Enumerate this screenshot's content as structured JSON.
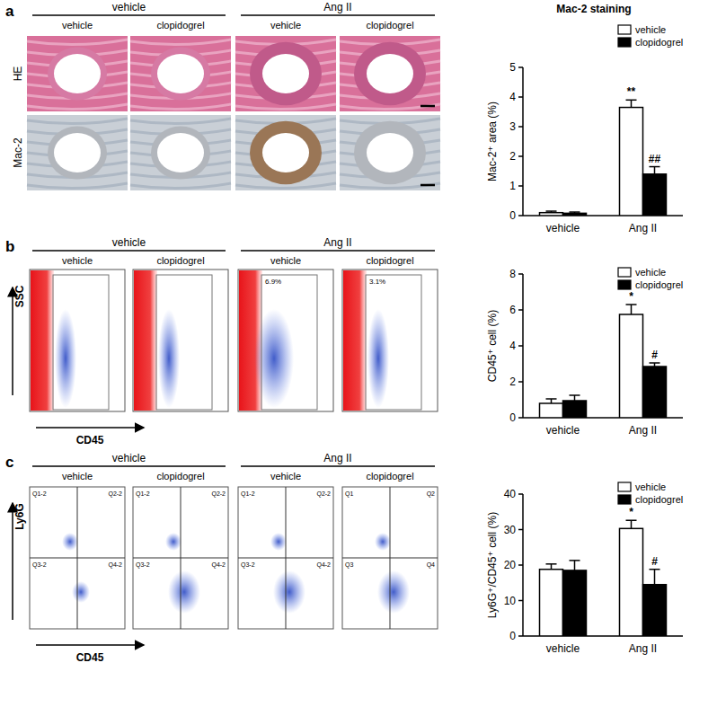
{
  "chart_data": [
    {
      "type": "bar",
      "title": "Mac-2 staining",
      "y_label": "Mac-2⁺ area (%)",
      "categories": [
        "vehicle",
        "Ang II"
      ],
      "series": [
        {
          "name": "vehicle",
          "color": "#ffffff",
          "values": [
            0.1,
            3.65
          ],
          "errors": [
            0.05,
            0.25
          ],
          "annotations": [
            null,
            "**"
          ]
        },
        {
          "name": "clopidogrel",
          "color": "#000000",
          "values": [
            0.08,
            1.4
          ],
          "errors": [
            0.04,
            0.25
          ],
          "annotations": [
            null,
            "##"
          ]
        }
      ],
      "ylim": [
        0,
        5
      ],
      "yticks": [
        0,
        1,
        2,
        3,
        4,
        5
      ],
      "legend": "top-right"
    },
    {
      "type": "bar",
      "y_label": "CD45⁺ cell (%)",
      "categories": [
        "vehicle",
        "Ang II"
      ],
      "series": [
        {
          "name": "vehicle",
          "color": "#ffffff",
          "values": [
            0.8,
            5.75
          ],
          "errors": [
            0.25,
            0.55
          ],
          "annotations": [
            null,
            "*"
          ]
        },
        {
          "name": "clopidogrel",
          "color": "#000000",
          "values": [
            0.95,
            2.85
          ],
          "errors": [
            0.3,
            0.2
          ],
          "annotations": [
            null,
            "#"
          ]
        }
      ],
      "ylim": [
        0,
        8
      ],
      "yticks": [
        0,
        2,
        4,
        6,
        8
      ],
      "legend": "top-right"
    },
    {
      "type": "bar",
      "y_label": "Ly6G⁺/CD45⁺ cell (%)",
      "categories": [
        "vehicle",
        "Ang II"
      ],
      "series": [
        {
          "name": "vehicle",
          "color": "#ffffff",
          "values": [
            18.8,
            30.3
          ],
          "errors": [
            1.5,
            2.3
          ],
          "annotations": [
            null,
            "*"
          ]
        },
        {
          "name": "clopidogrel",
          "color": "#000000",
          "values": [
            18.5,
            14.5
          ],
          "errors": [
            2.8,
            4.3
          ],
          "annotations": [
            null,
            "#"
          ]
        }
      ],
      "ylim": [
        0,
        40
      ],
      "yticks": [
        0,
        10,
        20,
        30,
        40
      ],
      "legend": "top-right"
    }
  ],
  "figure": {
    "panels": [
      {
        "letter": "a",
        "groups": [
          "vehicle",
          "Ang II"
        ],
        "columns": [
          "vehicle",
          "clopidogrel",
          "vehicle",
          "clopidogrel"
        ],
        "rows": [
          "HE",
          "Mac-2"
        ]
      },
      {
        "letter": "b",
        "groups": [
          "vehicle",
          "Ang II"
        ],
        "columns": [
          "vehicle",
          "clopidogrel",
          "vehicle",
          "clopidogrel"
        ],
        "y_label": "SSC",
        "x_label": "CD45",
        "gate_labels": [
          null,
          null,
          "6.9%",
          "3.1%"
        ]
      },
      {
        "letter": "c",
        "groups": [
          "vehicle",
          "Ang II"
        ],
        "columns": [
          "vehicle",
          "clopidogrel",
          "vehicle",
          "clopidogrel"
        ],
        "y_label": "Ly6G",
        "x_label": "CD45",
        "quadrant_labels": [
          [
            "Q1-2",
            "Q2-2",
            "Q3-2",
            "Q4-2"
          ],
          [
            "Q1-2",
            "Q2-2",
            "Q3-2",
            "Q4-2"
          ],
          [
            "Q1-2",
            "Q2-2",
            "Q3-2",
            "Q4-2"
          ],
          [
            "Q1",
            "Q2",
            "Q3",
            "Q4"
          ]
        ]
      }
    ]
  }
}
